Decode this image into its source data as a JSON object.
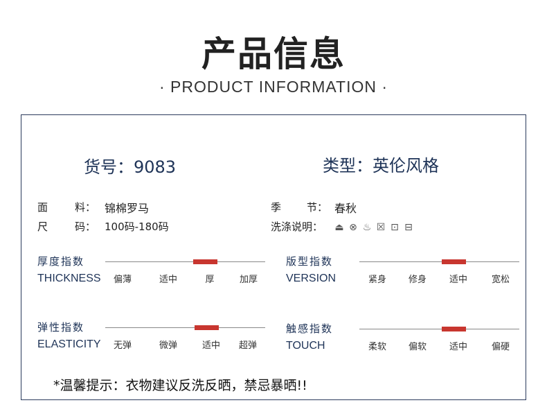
{
  "header": {
    "title": "产品信息",
    "subtitle": "· PRODUCT  INFORMATION ·"
  },
  "info": {
    "item_no": "货号：9083",
    "style": "类型：英伦风格",
    "fabric_label_a": "面",
    "fabric_label_b": "料：",
    "fabric": "锦棉罗马",
    "size_label_a": "尺",
    "size_label_b": "码：",
    "size": "100码-180码",
    "season_label_a": "季",
    "season_label_b": "节：",
    "season": "春秋",
    "wash_label": "洗涤说明：",
    "wash_icons": [
      "iron-icon",
      "no-bleach-icon",
      "hand-wash-icon",
      "no-dry-clean-icon",
      "tumble-dry-icon",
      "line-dry-icon"
    ]
  },
  "indices": [
    {
      "cn": "厚度指数",
      "en": "THICKNESS",
      "options": [
        "偏薄",
        "适中",
        "厚",
        "加厚"
      ],
      "level": "厚"
    },
    {
      "cn": "版型指数",
      "en": "VERSION",
      "options": [
        "紧身",
        "修身",
        "适中",
        "宽松"
      ],
      "level": "适中"
    },
    {
      "cn": "弹性指数",
      "en": "ELASTICITY",
      "options": [
        "无弹",
        "微弹",
        "适中",
        "超弹"
      ],
      "level": "适中"
    },
    {
      "cn": "触感指数",
      "en": "TOUCH",
      "options": [
        "柔软",
        "偏软",
        "适中",
        "偏硬"
      ],
      "level": "适中"
    }
  ],
  "tip": "*温馨提示：衣物建议反洗反晒，禁忌暴晒!!",
  "colors": {
    "accent": "#c8362f",
    "navy": "#1e3357"
  }
}
